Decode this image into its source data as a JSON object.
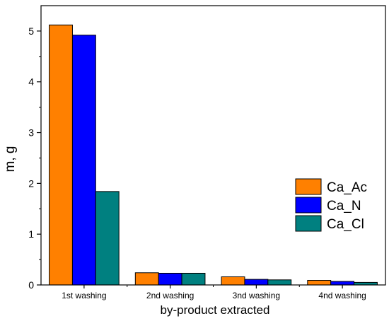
{
  "chart_data": {
    "type": "bar",
    "title": "",
    "xlabel": "by-product extracted",
    "ylabel": "m, g",
    "categories": [
      "1st washing",
      "2nd washing",
      "3nd washing",
      "4nd washing"
    ],
    "series": [
      {
        "name": "Ca_Ac",
        "color": "#FF8000",
        "values": [
          5.12,
          0.24,
          0.16,
          0.09
        ]
      },
      {
        "name": "Ca_N",
        "color": "#0000FF",
        "values": [
          4.92,
          0.23,
          0.11,
          0.07
        ]
      },
      {
        "name": "Ca_Cl",
        "color": "#008080",
        "values": [
          1.84,
          0.23,
          0.1,
          0.05
        ]
      }
    ],
    "ylim": [
      0,
      5.5
    ],
    "yticks": [
      0,
      1,
      2,
      3,
      4,
      5
    ],
    "grid": false,
    "legend_position": "right"
  }
}
